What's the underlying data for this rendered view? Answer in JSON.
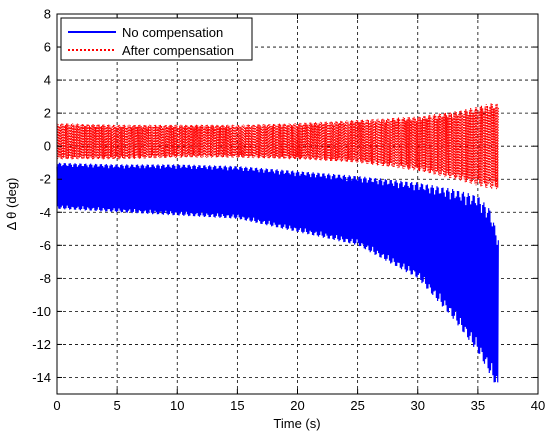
{
  "chart_data": {
    "type": "line",
    "xlabel": "Time (s)",
    "ylabel": "Δ θ (deg)",
    "xlim": [
      0,
      40
    ],
    "ylim": [
      -15,
      8
    ],
    "xticks": [
      0,
      5,
      10,
      15,
      20,
      25,
      30,
      35,
      40
    ],
    "yticks": [
      -14,
      -12,
      -10,
      -8,
      -6,
      -4,
      -2,
      0,
      2,
      4,
      6,
      8
    ],
    "xtick_labels": [
      "0",
      "5",
      "10",
      "15",
      "20",
      "25",
      "30",
      "35",
      "40"
    ],
    "ytick_labels": [
      "-14",
      "-12",
      "-10",
      "-8",
      "-6",
      "-4",
      "-2",
      "0",
      "2",
      "4",
      "6",
      "8"
    ],
    "grid": true,
    "grid_style": "dashed",
    "legend_position": "top-left",
    "series": [
      {
        "name": "No compensation",
        "color": "#0000ff",
        "line_style": "solid",
        "envelope_x": [
          0,
          5,
          10,
          15,
          20,
          25,
          30,
          33,
          35,
          36,
          36.7
        ],
        "envelope_upper": [
          -1.0,
          -1.1,
          -1.1,
          -1.2,
          -1.5,
          -1.8,
          -2.2,
          -2.6,
          -3.0,
          -3.8,
          -5.5
        ],
        "envelope_lower": [
          -3.8,
          -4.0,
          -4.2,
          -4.4,
          -5.2,
          -6.0,
          -8.0,
          -10.5,
          -12.5,
          -13.8,
          -14.8
        ]
      },
      {
        "name": "After compensation",
        "color": "#ff0000",
        "line_style": "dotted",
        "envelope_x": [
          0,
          5,
          10,
          15,
          20,
          25,
          30,
          33,
          35,
          36,
          36.7
        ],
        "envelope_upper": [
          1.4,
          1.3,
          1.3,
          1.3,
          1.4,
          1.6,
          1.8,
          2.1,
          2.4,
          2.6,
          2.6
        ],
        "envelope_lower": [
          -0.8,
          -0.8,
          -0.7,
          -0.7,
          -0.8,
          -1.0,
          -1.5,
          -2.0,
          -2.4,
          -2.6,
          -2.6
        ]
      }
    ]
  }
}
